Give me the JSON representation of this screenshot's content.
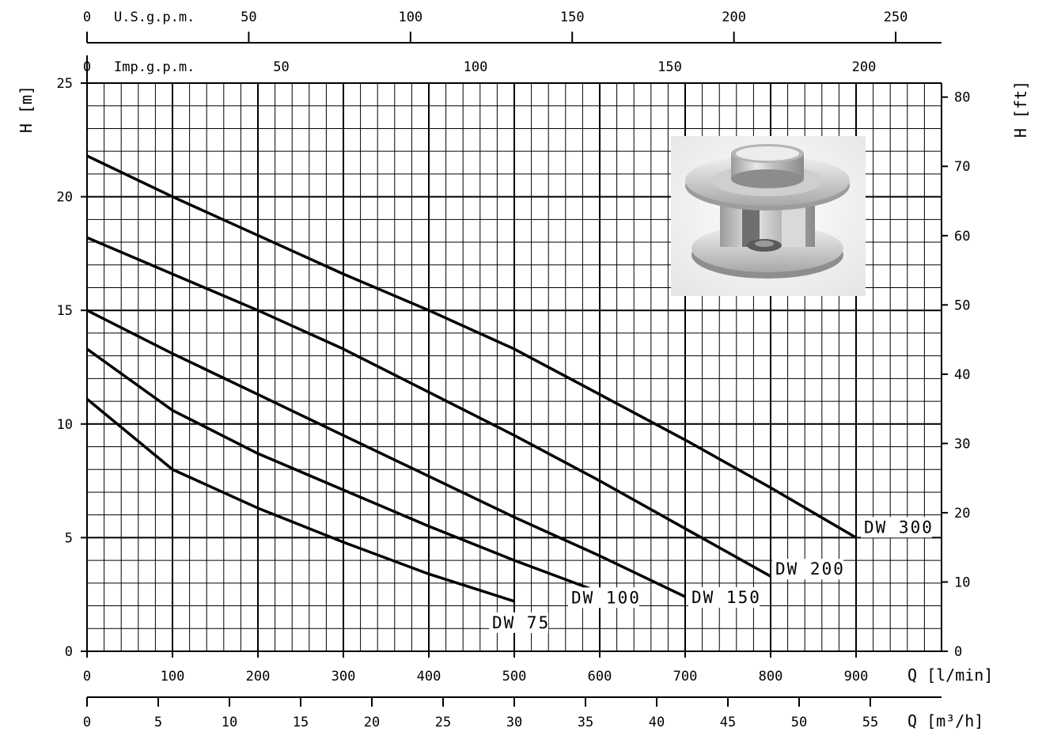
{
  "chart_data": {
    "type": "line",
    "title": "",
    "x_axis": {
      "label": "Q [l/min]",
      "range": [
        0,
        1000
      ],
      "ticks": [
        0,
        100,
        200,
        300,
        400,
        500,
        600,
        700,
        800,
        900
      ]
    },
    "x_axis_m3h": {
      "label": "Q [m³/h]",
      "ticks": [
        0,
        5,
        10,
        15,
        20,
        25,
        30,
        35,
        40,
        45,
        50,
        55
      ]
    },
    "x_axis_usgpm": {
      "label": "U.S.g.p.m.",
      "ticks": [
        0,
        50,
        100,
        150,
        200,
        250
      ]
    },
    "x_axis_impgpm": {
      "label": "Imp.g.p.m.",
      "ticks": [
        0,
        50,
        100,
        150,
        200
      ]
    },
    "y_axis": {
      "label": "H [m]",
      "range": [
        0,
        25
      ],
      "ticks": [
        0,
        5,
        10,
        15,
        20,
        25
      ]
    },
    "y_axis_ft": {
      "label": "H [ft]",
      "ticks": [
        0,
        10,
        20,
        30,
        40,
        50,
        60,
        70,
        80
      ]
    },
    "grid": true,
    "series": [
      {
        "name": "DW 75",
        "x": [
          0,
          100,
          200,
          300,
          400,
          500
        ],
        "y": [
          11.1,
          8.0,
          6.3,
          4.8,
          3.4,
          2.2
        ]
      },
      {
        "name": "DW 100",
        "x": [
          0,
          100,
          200,
          300,
          400,
          500,
          600
        ],
        "y": [
          13.3,
          10.6,
          8.7,
          7.1,
          5.5,
          4.0,
          2.6
        ]
      },
      {
        "name": "DW 150",
        "x": [
          0,
          100,
          200,
          300,
          400,
          500,
          600,
          700
        ],
        "y": [
          15.0,
          13.1,
          11.3,
          9.5,
          7.7,
          5.9,
          4.2,
          2.4
        ]
      },
      {
        "name": "DW 200",
        "x": [
          0,
          100,
          200,
          300,
          400,
          500,
          600,
          700,
          800
        ],
        "y": [
          18.2,
          16.6,
          15.0,
          13.3,
          11.4,
          9.5,
          7.5,
          5.4,
          3.3
        ]
      },
      {
        "name": "DW 300",
        "x": [
          0,
          100,
          200,
          300,
          400,
          500,
          600,
          700,
          800,
          900
        ],
        "y": [
          21.8,
          20.0,
          18.3,
          16.6,
          15.0,
          13.3,
          11.3,
          9.3,
          7.2,
          5.0
        ]
      }
    ]
  },
  "image": {
    "subject": "impeller-photo"
  }
}
